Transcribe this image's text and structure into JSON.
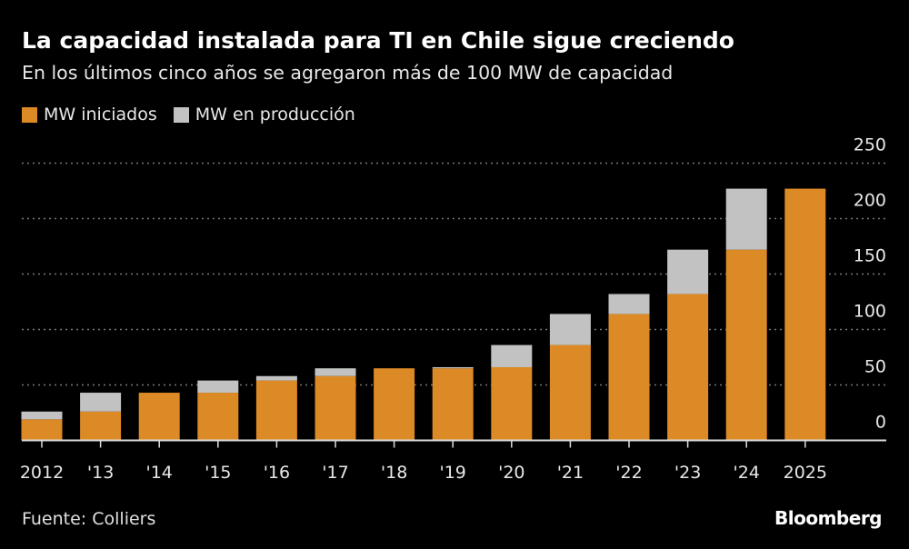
{
  "title": "La capacidad instalada para TI en Chile sigue creciendo",
  "subtitle": "En los últimos cinco años se agregaron más de 100 MW de capacidad",
  "source": "Fuente: Colliers",
  "logo": "Bloomberg",
  "colors": {
    "iniciados": "#dc8a26",
    "produccion": "#c2c2c2",
    "background": "#000000",
    "grid": "#777777"
  },
  "chart_data": {
    "type": "bar",
    "stacked": true,
    "title": "La capacidad instalada para TI en Chile sigue creciendo",
    "subtitle": "En los últimos cinco años se agregaron más de 100 MW de capacidad",
    "categories": [
      "2012",
      "'13",
      "'14",
      "'15",
      "'16",
      "'17",
      "'18",
      "'19",
      "'20",
      "'21",
      "'22",
      "'23",
      "'24",
      "2025"
    ],
    "series": [
      {
        "name": "MW iniciados",
        "values": [
          19,
          26,
          43,
          43,
          54,
          58,
          65,
          65,
          66,
          86,
          114,
          132,
          172,
          227
        ]
      },
      {
        "name": "MW en producción",
        "values": [
          7,
          17,
          0,
          11,
          4,
          7,
          0,
          1,
          20,
          28,
          18,
          40,
          55,
          0
        ]
      }
    ],
    "yticks": [
      0,
      50,
      100,
      150,
      200,
      250
    ],
    "ylim": [
      0,
      250
    ],
    "y_axis_side": "right",
    "grid": true,
    "legend_placement": "top-left",
    "xlabel": "",
    "ylabel": ""
  }
}
